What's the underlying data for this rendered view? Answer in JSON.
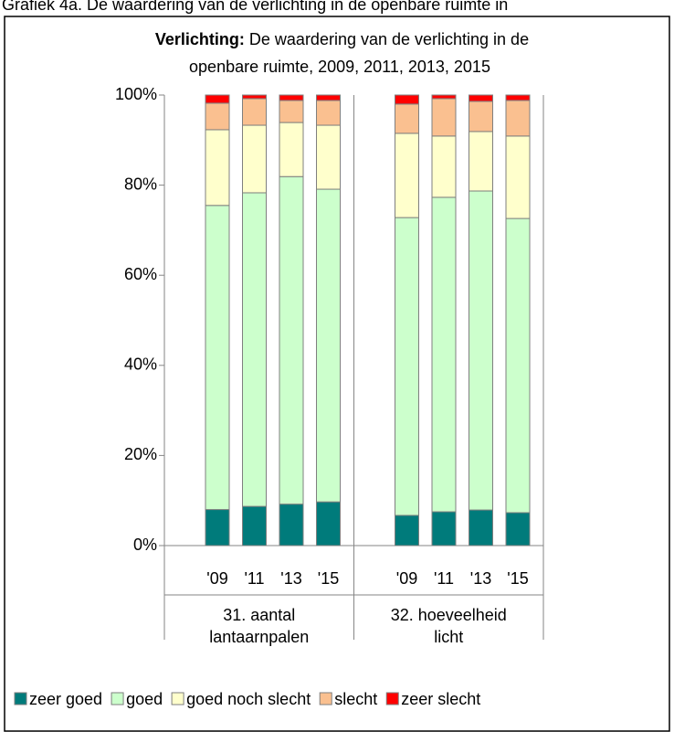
{
  "caption": "Grafiek 4a. De waardering van de verlichting in de openbare ruimte in",
  "chart_data": {
    "type": "stacked-bar",
    "title_bold": "Verlichting:",
    "title_line1": "De waardering van de verlichting in de",
    "title_line2": "openbare ruimte, 2009, 2011, 2013, 2015",
    "categories": [
      "'09",
      "'11",
      "'13",
      "'15",
      "'09",
      "'11",
      "'13",
      "'15"
    ],
    "groups": [
      {
        "label": [
          "31. aantal",
          "lantaarnpalen"
        ]
      },
      {
        "label": [
          "32. hoeveelheid",
          "licht"
        ]
      }
    ],
    "series": [
      {
        "name": "zeer goed",
        "color": "#007b7b",
        "values": [
          8,
          8.7,
          9.2,
          9.7,
          6.7,
          7.5,
          7.9,
          7.3
        ]
      },
      {
        "name": "goed",
        "color": "#ccffcc",
        "values": [
          67.5,
          69.6,
          72.7,
          69.4,
          66.1,
          69.8,
          70.8,
          65.3
        ]
      },
      {
        "name": "goed noch slecht",
        "color": "#ffffcc",
        "values": [
          16.8,
          15.0,
          12.0,
          14.2,
          18.7,
          13.6,
          13.2,
          18.3
        ]
      },
      {
        "name": "slecht",
        "color": "#fac090",
        "values": [
          5.9,
          5.9,
          4.9,
          5.5,
          6.5,
          8.3,
          6.7,
          7.9
        ]
      },
      {
        "name": "zeer slecht",
        "color": "#ff0000",
        "values": [
          1.8,
          0.8,
          1.2,
          1.2,
          2.0,
          0.8,
          1.4,
          1.2
        ]
      }
    ],
    "ylim": [
      0,
      100
    ],
    "yticks": [
      {
        "value": 0,
        "label": "0%"
      },
      {
        "value": 20,
        "label": "20%"
      },
      {
        "value": 40,
        "label": "40%"
      },
      {
        "value": 60,
        "label": "60%"
      },
      {
        "value": 80,
        "label": "80%"
      },
      {
        "value": 100,
        "label": "100%"
      }
    ],
    "legend": "bottom"
  }
}
